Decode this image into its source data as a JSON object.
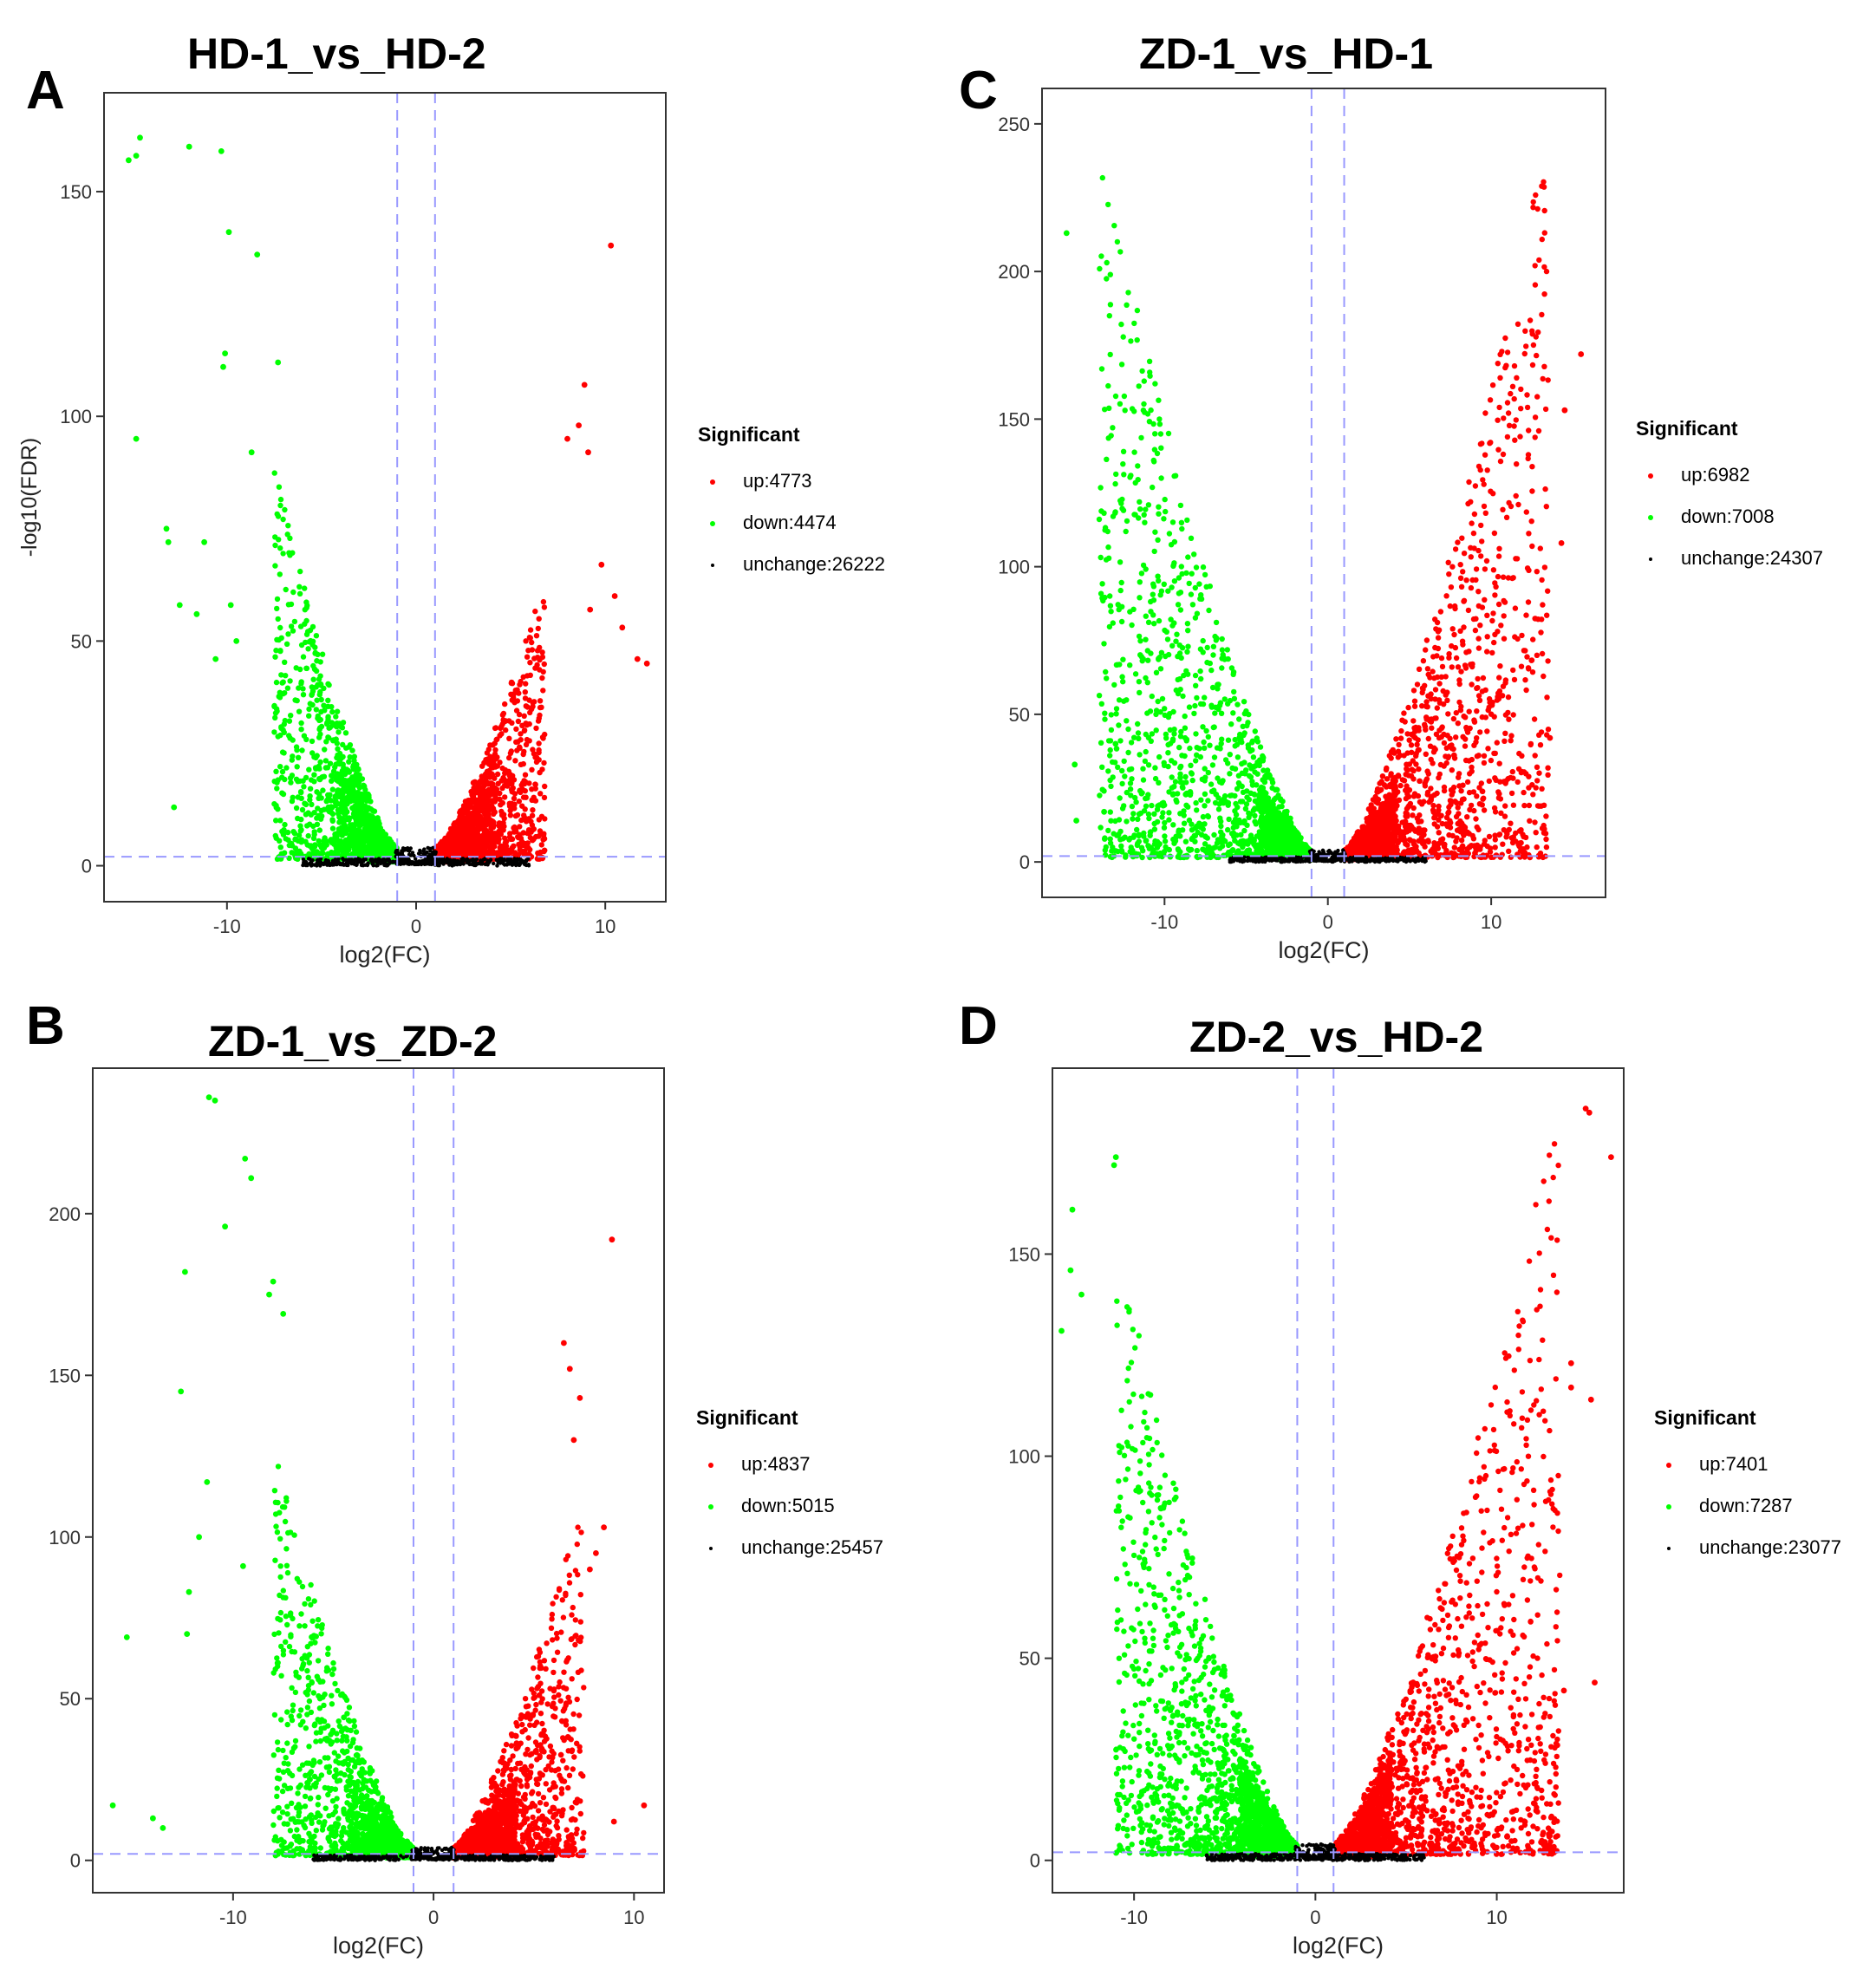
{
  "colors": {
    "up": "#ff0000",
    "down": "#00ff00",
    "unchange": "#000000",
    "threshold_line": "#9999ff",
    "axis": "#333333"
  },
  "legend_title": "Significant",
  "chart_data": [
    {
      "panel": "A",
      "type": "scatter",
      "subtype": "volcano",
      "title": "HD-1_vs_HD-2",
      "xlabel": "log2(FC)",
      "ylabel": "-log10(FDR)",
      "xlim": [
        -16.5,
        13.2
      ],
      "ylim": [
        -8,
        172
      ],
      "x_ticks": [
        -10,
        0,
        10
      ],
      "y_ticks": [
        0,
        50,
        100,
        150
      ],
      "x_tick_labels": [
        "-10",
        "0",
        "10"
      ],
      "y_tick_labels": [
        "0",
        "50",
        "100",
        "150"
      ],
      "fc_threshold": 1,
      "fdr_threshold": 2,
      "legend": {
        "up": "up:4773",
        "down": "down:4474",
        "unchange": "unchange:26222"
      },
      "counts": {
        "up": 4773,
        "down": 4474,
        "unchange": 26222
      },
      "cloud": {
        "down_xmax": 7.5,
        "up_xmax": 6.8,
        "down_ymax": 85,
        "up_ymax": 60,
        "seed": 11,
        "n": 1800
      },
      "outliers_down": [
        [
          -14.6,
          162
        ],
        [
          -14.8,
          158
        ],
        [
          -15.2,
          157
        ],
        [
          -12,
          160
        ],
        [
          -10.3,
          159
        ],
        [
          -9.9,
          141
        ],
        [
          -8.4,
          136
        ],
        [
          -10.1,
          114
        ],
        [
          -10.2,
          111
        ],
        [
          -7.3,
          112
        ],
        [
          -14.8,
          95
        ],
        [
          -8.7,
          92
        ],
        [
          -13.2,
          75
        ],
        [
          -13.1,
          72
        ],
        [
          -11.2,
          72
        ],
        [
          -12.5,
          58
        ],
        [
          -11.6,
          56
        ],
        [
          -12.8,
          13
        ],
        [
          -9.8,
          58
        ],
        [
          -10.6,
          46
        ],
        [
          -9.5,
          50
        ]
      ],
      "outliers_up": [
        [
          10.3,
          138
        ],
        [
          8.9,
          107
        ],
        [
          8.6,
          98
        ],
        [
          8,
          95
        ],
        [
          9.1,
          92
        ],
        [
          11.7,
          46
        ],
        [
          12.2,
          45
        ],
        [
          10.5,
          60
        ],
        [
          9.2,
          57
        ],
        [
          10.9,
          53
        ],
        [
          9.8,
          67
        ]
      ]
    },
    {
      "panel": "B",
      "type": "scatter",
      "subtype": "volcano",
      "title": "ZD-1_vs_ZD-2",
      "xlabel": "log2(FC)",
      "ylabel": "",
      "xlim": [
        -17,
        11.5
      ],
      "ylim": [
        -10,
        245
      ],
      "x_ticks": [
        -10,
        0,
        10
      ],
      "y_ticks": [
        0,
        50,
        100,
        150,
        200
      ],
      "x_tick_labels": [
        "-10",
        "0",
        "10"
      ],
      "y_tick_labels": [
        "0",
        "50",
        "100",
        "150",
        "200"
      ],
      "fc_threshold": 1,
      "fdr_threshold": 2,
      "legend": {
        "up": "up:4837",
        "down": "down:5015",
        "unchange": "unchange:25457"
      },
      "counts": {
        "up": 4837,
        "down": 5015,
        "unchange": 25457
      },
      "cloud": {
        "down_xmax": 8,
        "up_xmax": 7.5,
        "down_ymax": 125,
        "up_ymax": 110,
        "seed": 23,
        "n": 1900
      },
      "outliers_down": [
        [
          -11.2,
          236
        ],
        [
          -10.9,
          235
        ],
        [
          -9.4,
          217
        ],
        [
          -9.1,
          211
        ],
        [
          -10.4,
          196
        ],
        [
          -12.4,
          182
        ],
        [
          -8,
          179
        ],
        [
          -8.2,
          175
        ],
        [
          -7.5,
          169
        ],
        [
          -12.6,
          145
        ],
        [
          -11.3,
          117
        ],
        [
          -11.7,
          100
        ],
        [
          -12.2,
          83
        ],
        [
          -15.3,
          69
        ],
        [
          -12.3,
          70
        ],
        [
          -9.5,
          91
        ],
        [
          -16,
          17
        ],
        [
          -14,
          13
        ],
        [
          -13.5,
          10
        ]
      ],
      "outliers_up": [
        [
          8.9,
          192
        ],
        [
          6.5,
          160
        ],
        [
          6.8,
          152
        ],
        [
          7.3,
          143
        ],
        [
          7,
          130
        ],
        [
          8.5,
          103
        ],
        [
          8.1,
          95
        ],
        [
          7.8,
          90
        ],
        [
          10.5,
          17
        ],
        [
          9,
          12
        ]
      ]
    },
    {
      "panel": "C",
      "type": "scatter",
      "subtype": "volcano",
      "title": "ZD-1_vs_HD-1",
      "xlabel": "log2(FC)",
      "ylabel": "",
      "xlim": [
        -17.5,
        17
      ],
      "ylim": [
        -12,
        262
      ],
      "x_ticks": [
        -10,
        0,
        10
      ],
      "y_ticks": [
        0,
        50,
        100,
        150,
        200,
        250
      ],
      "x_tick_labels": [
        "-10",
        "0",
        "10"
      ],
      "y_tick_labels": [
        "0",
        "50",
        "100",
        "150",
        "200",
        "250"
      ],
      "fc_threshold": 1,
      "fdr_threshold": 2,
      "legend": {
        "up": "up:6982",
        "down": "down:7008",
        "unchange": "unchange:24307"
      },
      "counts": {
        "up": 6982,
        "down": 7008,
        "unchange": 24307
      },
      "cloud": {
        "down_xmax": 14,
        "up_xmax": 13.5,
        "down_ymax": 245,
        "up_ymax": 245,
        "seed": 37,
        "n": 2600
      },
      "outliers_down": [
        [
          -16,
          213
        ],
        [
          -15.5,
          33
        ],
        [
          -15.4,
          14
        ],
        [
          -13,
          40
        ],
        [
          -13.7,
          17
        ]
      ],
      "outliers_up": [
        [
          15.5,
          172
        ],
        [
          14.5,
          153
        ],
        [
          14.3,
          108
        ],
        [
          13.6,
          42
        ]
      ]
    },
    {
      "panel": "D",
      "type": "scatter",
      "subtype": "volcano",
      "title": "ZD-2_vs_HD-2",
      "xlabel": "log2(FC)",
      "ylabel": "",
      "xlim": [
        -14.5,
        17
      ],
      "ylim": [
        -8,
        196
      ],
      "x_ticks": [
        -10,
        0,
        10
      ],
      "y_ticks": [
        0,
        50,
        100,
        150
      ],
      "x_tick_labels": [
        "-10",
        "0",
        "10"
      ],
      "y_tick_labels": [
        "0",
        "50",
        "100",
        "150"
      ],
      "fc_threshold": 1,
      "fdr_threshold": 2,
      "legend": {
        "up": "up:7401",
        "down": "down:7287",
        "unchange": "unchange:23077"
      },
      "counts": {
        "up": 7401,
        "down": 7287,
        "unchange": 23077
      },
      "cloud": {
        "down_xmax": 11,
        "up_xmax": 13.5,
        "down_ymax": 152,
        "up_ymax": 185,
        "seed": 53,
        "n": 2600
      },
      "outliers_down": [
        [
          -11,
          174
        ],
        [
          -11.1,
          172
        ],
        [
          -13.4,
          161
        ],
        [
          -13.5,
          146
        ],
        [
          -12.9,
          140
        ],
        [
          -14,
          131
        ]
      ],
      "outliers_up": [
        [
          14.9,
          186
        ],
        [
          15.1,
          185
        ],
        [
          16.3,
          174
        ],
        [
          14.1,
          123
        ],
        [
          14.1,
          117
        ],
        [
          15.2,
          114
        ],
        [
          15.4,
          44
        ],
        [
          13.7,
          42
        ]
      ]
    }
  ]
}
